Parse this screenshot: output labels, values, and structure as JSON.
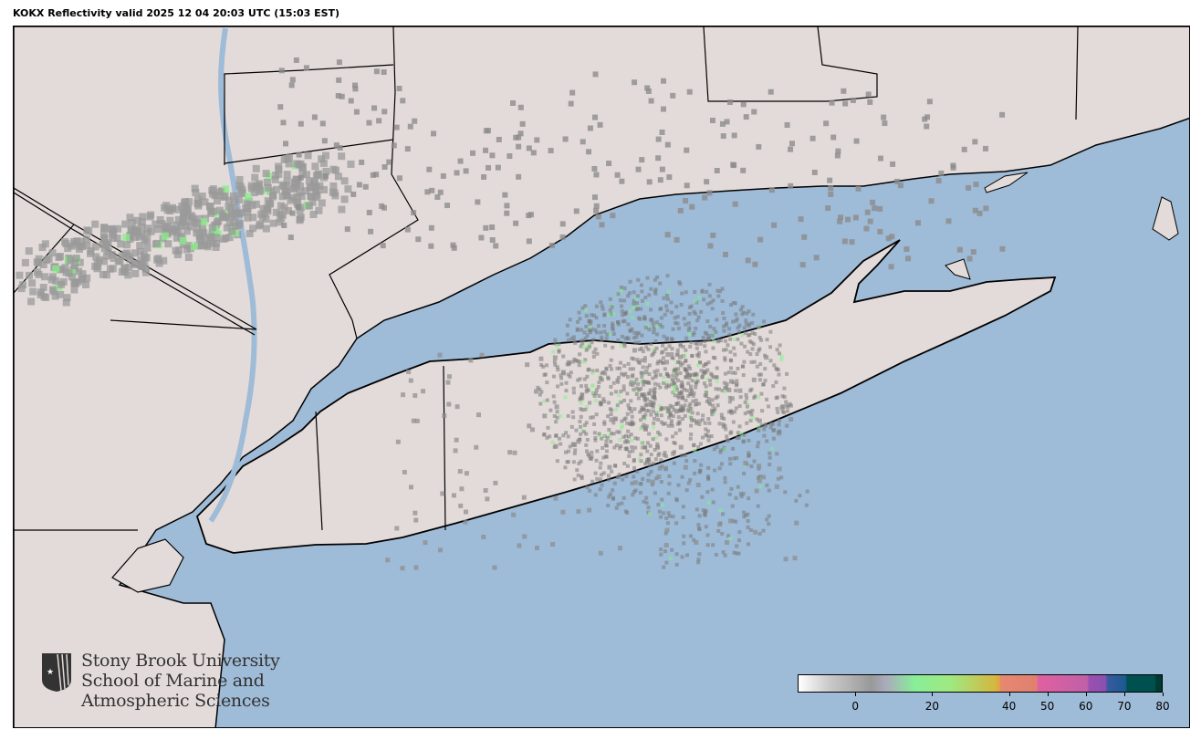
{
  "title": "KOKX Reflectivity valid 2025 12 04 20:03 UTC (15:03 EST)",
  "colors": {
    "water": "#9ebbd7",
    "land": "#e3dbd9",
    "boundary": "#000000",
    "echo": "#8c8c8c",
    "echo_strong": "#88ee88"
  },
  "logo": {
    "lines": [
      "Stony Brook University",
      "School of Marine and",
      "Atmospheric Sciences"
    ],
    "icon": "stony-brook-shield-icon"
  },
  "colorbar": {
    "range": [
      -15,
      80
    ],
    "ticks": [
      {
        "value": 0,
        "label": "0"
      },
      {
        "value": 20,
        "label": "20"
      },
      {
        "value": 40,
        "label": "40"
      },
      {
        "value": 50,
        "label": "50"
      },
      {
        "value": 60,
        "label": "60"
      },
      {
        "value": 70,
        "label": "70"
      },
      {
        "value": 80,
        "label": "80"
      }
    ]
  }
}
